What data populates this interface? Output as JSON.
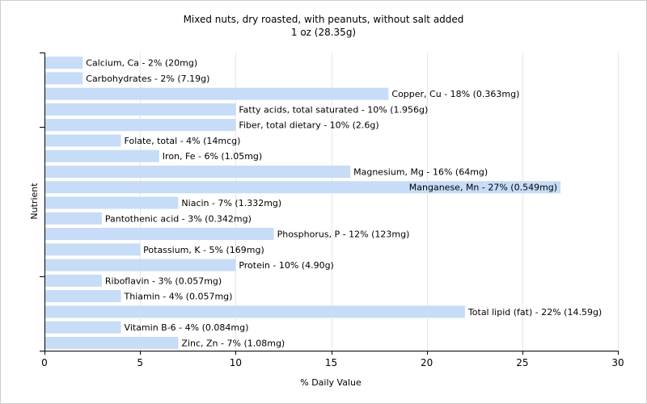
{
  "chart_data": {
    "type": "bar",
    "orientation": "horizontal",
    "title": "Mixed nuts, dry roasted, with peanuts, without salt added",
    "subtitle": "1 oz (28.35g)",
    "xlabel": "% Daily Value",
    "ylabel": "Nutrient",
    "xlim": [
      0,
      30
    ],
    "xticks": [
      "0",
      "5",
      "10",
      "15",
      "20",
      "25",
      "30"
    ],
    "grid": true,
    "bar_color": "#c6dcf7",
    "categories": [
      "Calcium, Ca",
      "Carbohydrates",
      "Copper, Cu",
      "Fatty acids, total saturated",
      "Fiber, total dietary",
      "Folate, total",
      "Iron, Fe",
      "Magnesium, Mg",
      "Manganese, Mn",
      "Niacin",
      "Pantothenic acid",
      "Phosphorus, P",
      "Potassium, K",
      "Protein",
      "Riboflavin",
      "Thiamin",
      "Total lipid (fat)",
      "Vitamin B-6",
      "Zinc, Zn"
    ],
    "values": [
      2,
      2,
      18,
      10,
      10,
      4,
      6,
      16,
      27,
      7,
      3,
      12,
      5,
      10,
      3,
      4,
      22,
      4,
      7
    ],
    "labels": [
      "Calcium, Ca - 2% (20mg)",
      "Carbohydrates - 2% (7.19g)",
      "Copper, Cu - 18% (0.363mg)",
      "Fatty acids, total saturated - 10% (1.956g)",
      "Fiber, total dietary - 10% (2.6g)",
      "Folate, total - 4% (14mcg)",
      "Iron, Fe - 6% (1.05mg)",
      "Magnesium, Mg - 16% (64mg)",
      "Manganese, Mn - 27% (0.549mg)",
      "Niacin - 7% (1.332mg)",
      "Pantothenic acid - 3% (0.342mg)",
      "Phosphorus, P - 12% (123mg)",
      "Potassium, K - 5% (169mg)",
      "Protein - 10% (4.90g)",
      "Riboflavin - 3% (0.057mg)",
      "Thiamin - 4% (0.057mg)",
      "Total lipid (fat) - 22% (14.59g)",
      "Vitamin B-6 - 4% (0.084mg)",
      "Zinc, Zn - 7% (1.08mg)"
    ]
  }
}
